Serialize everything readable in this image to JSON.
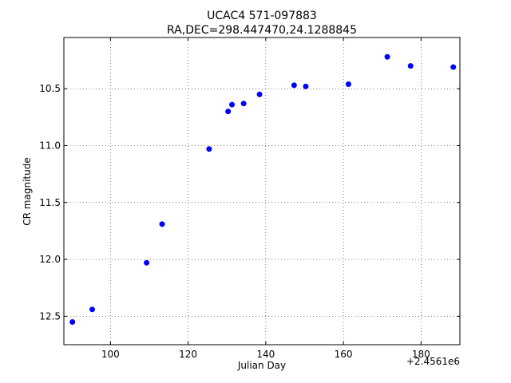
{
  "chart_data": {
    "type": "scatter",
    "title": "UCAC4 571-097883",
    "subtitle": "RA,DEC=298.447470,24.1288845",
    "xlabel": "Julian Day",
    "ylabel": "CR magnitude",
    "x_offset_label": "+2.4561e6",
    "xlim": [
      88,
      190
    ],
    "ylim": [
      12.75,
      10.05
    ],
    "y_inverted": true,
    "grid": true,
    "x_ticks": [
      100,
      120,
      140,
      160,
      180
    ],
    "y_ticks": [
      10.5,
      11.0,
      11.5,
      12.0,
      12.5
    ],
    "x_tick_labels": [
      "100",
      "120",
      "140",
      "160",
      "180"
    ],
    "y_tick_labels": [
      "10.5",
      "11.0",
      "11.5",
      "12.0",
      "12.5"
    ],
    "marker_color": "#0000ff",
    "series": [
      {
        "x": [
          90.2,
          95.3,
          109.3,
          113.3,
          125.4,
          130.3,
          131.3,
          134.3,
          138.4,
          147.3,
          150.3,
          161.3,
          171.3,
          177.3,
          188.3
        ],
        "y": [
          12.55,
          12.44,
          12.03,
          11.69,
          11.03,
          10.7,
          10.64,
          10.63,
          10.55,
          10.47,
          10.48,
          10.46,
          10.22,
          10.3,
          10.31
        ]
      }
    ]
  }
}
